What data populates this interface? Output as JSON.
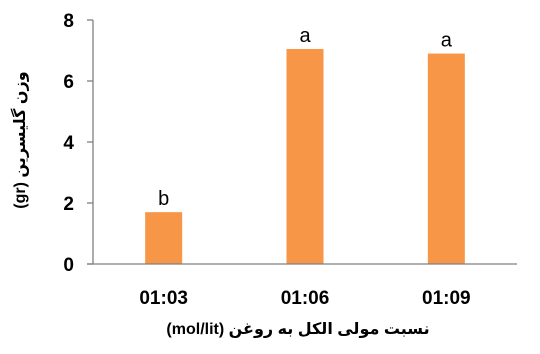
{
  "chart_data": {
    "type": "bar",
    "categories": [
      "01:03",
      "01:06",
      "01:09"
    ],
    "values": [
      1.7,
      7.05,
      6.9
    ],
    "bar_labels": [
      "b",
      "a",
      "a"
    ],
    "xlabel": "نسبت مولی الکل به روغن  (mol/lit)",
    "ylabel": "وزن گلیسرین (gr)",
    "ylim": [
      0,
      8
    ],
    "yticks": [
      "0",
      "2",
      "4",
      "6",
      "8"
    ],
    "grid": false,
    "legend": "none",
    "bar_color": "#F79646",
    "axis_color": "#808080"
  }
}
